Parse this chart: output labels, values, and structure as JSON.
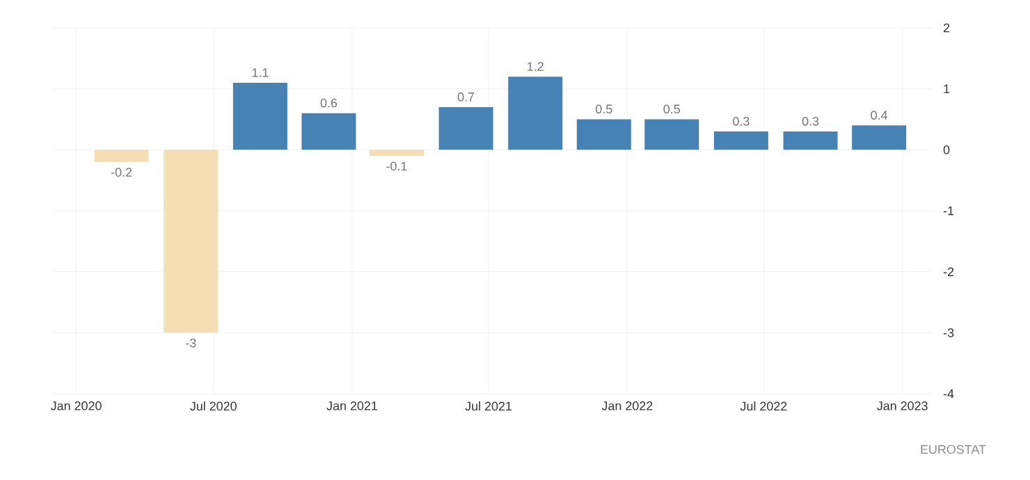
{
  "chart_data": {
    "type": "bar",
    "x": [
      "2020-03-01",
      "2020-06-01",
      "2020-09-01",
      "2020-12-01",
      "2021-03-01",
      "2021-06-01",
      "2021-09-01",
      "2021-12-01",
      "2022-03-01",
      "2022-06-01",
      "2022-09-01",
      "2022-12-01"
    ],
    "values": [
      -0.2,
      -3,
      1.1,
      0.6,
      -0.1,
      0.7,
      1.2,
      0.5,
      0.5,
      0.3,
      0.3,
      0.4
    ],
    "colors": [
      "#f5deb3",
      "#f5deb3",
      "#4682b4",
      "#4682b4",
      "#f5deb3",
      "#4682b4",
      "#4682b4",
      "#4682b4",
      "#4682b4",
      "#4682b4",
      "#4682b4",
      "#4682b4"
    ],
    "data_labels": true,
    "xlim": [
      "2019-12-01",
      "2023-02-10"
    ],
    "xticks": [
      {
        "value": "2020-01-01",
        "label": "Jan 2020"
      },
      {
        "value": "2020-07-01",
        "label": "Jul 2020"
      },
      {
        "value": "2021-01-01",
        "label": "Jan 2021"
      },
      {
        "value": "2021-07-01",
        "label": "Jul 2021"
      },
      {
        "value": "2022-01-01",
        "label": "Jan 2022"
      },
      {
        "value": "2022-07-01",
        "label": "Jul 2022"
      },
      {
        "value": "2023-01-01",
        "label": "Jan 2023"
      }
    ],
    "ylim": [
      -4,
      2
    ],
    "yticks": [
      -4,
      -3,
      -2,
      -1,
      0,
      1,
      2
    ],
    "grid": true,
    "annotations": [
      "EUROSTAT"
    ]
  }
}
